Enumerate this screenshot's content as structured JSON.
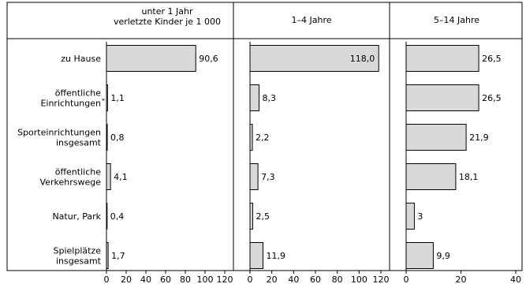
{
  "chart_data": {
    "type": "bar",
    "orientation": "horizontal",
    "categories": [
      [
        "zu Hause"
      ],
      [
        "öffentliche",
        "Einrichtungen"
      ],
      [
        "Sporteinrichtungen",
        "insgesamt"
      ],
      [
        "öffentliche",
        "Verkehrswege"
      ],
      [
        "Natur, Park"
      ],
      [
        "Spielplätze",
        "insgesamt"
      ]
    ],
    "footnote_mark": "*",
    "bar_fill": "#d9d9d9",
    "grid": false,
    "legend": "none",
    "panels": [
      {
        "title": [
          "unter 1 Jahr",
          "verletzte Kinder je 1 000"
        ],
        "values": [
          90.6,
          1.1,
          0.8,
          4.1,
          0.4,
          1.7
        ],
        "labels": [
          "90,6",
          "1,1",
          "0,8",
          "4,1",
          "0,4",
          "1,7"
        ],
        "xlim": [
          0,
          120
        ],
        "ticks": [
          0,
          20,
          40,
          60,
          80,
          100,
          120
        ]
      },
      {
        "title": [
          "1–4 Jahre"
        ],
        "values": [
          118.0,
          8.3,
          2.2,
          7.3,
          2.5,
          11.9
        ],
        "labels": [
          "118,0",
          "8,3",
          "2,2",
          "7,3",
          "2,5",
          "11,9"
        ],
        "xlim": [
          0,
          120
        ],
        "ticks": [
          0,
          20,
          40,
          60,
          80,
          100,
          120
        ]
      },
      {
        "title": [
          "5–14 Jahre"
        ],
        "values": [
          26.5,
          26.5,
          21.9,
          18.1,
          3,
          9.9
        ],
        "labels": [
          "26,5",
          "26,5",
          "21,9",
          "18,1",
          "3",
          "9,9"
        ],
        "xlim": [
          0,
          40
        ],
        "ticks": [
          0,
          20,
          40
        ]
      }
    ]
  }
}
